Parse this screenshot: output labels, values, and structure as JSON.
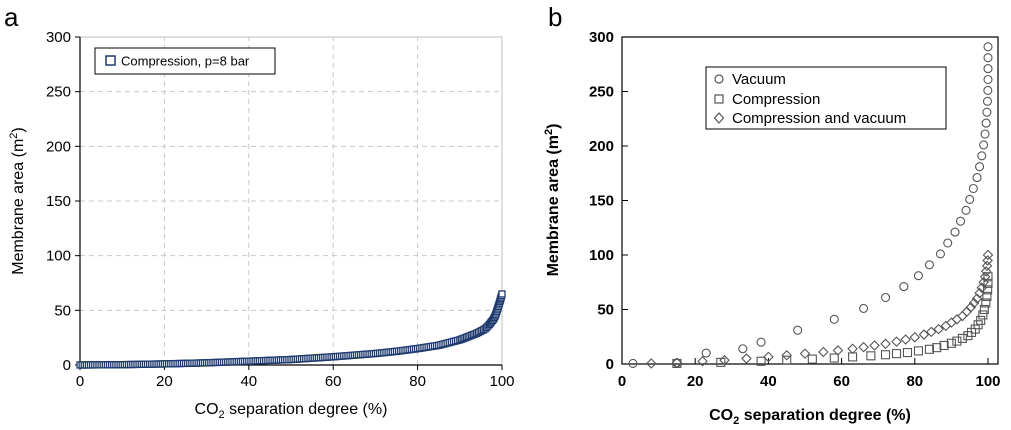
{
  "chart_data": [
    {
      "panel_label": "a",
      "type": "scatter",
      "xlabel": "CO2 separation degree (%)",
      "ylabel": "Membrane area (m2)",
      "xlim": [
        0,
        100
      ],
      "ylim": [
        0,
        300
      ],
      "xticks": [
        "0",
        "20",
        "40",
        "60",
        "80",
        "100"
      ],
      "yticks": [
        "0",
        "50",
        "100",
        "150",
        "200",
        "250",
        "300"
      ],
      "grid": true,
      "legend_position": "top-left",
      "marker": "square",
      "color": "#1f3a6e",
      "series": [
        {
          "name": "Compression, p=8 bar",
          "points": [
            [
              0,
              0.0
            ],
            [
              10,
              0.3
            ],
            [
              20,
              1.0
            ],
            [
              30,
              2.0
            ],
            [
              40,
              3.5
            ],
            [
              50,
              5.0
            ],
            [
              60,
              7.5
            ],
            [
              65,
              9.0
            ],
            [
              70,
              10.5
            ],
            [
              75,
              12.5
            ],
            [
              80,
              15.0
            ],
            [
              85,
              18.0
            ],
            [
              88,
              21.0
            ],
            [
              90,
              23.0
            ],
            [
              92,
              26.0
            ],
            [
              94,
              29.0
            ],
            [
              96,
              33.0
            ],
            [
              97,
              37.0
            ],
            [
              98,
              42.0
            ],
            [
              98.5,
              46.0
            ],
            [
              99,
              52.0
            ],
            [
              99.5,
              58.0
            ],
            [
              99.8,
              62.0
            ],
            [
              100,
              65.0
            ]
          ]
        }
      ]
    },
    {
      "panel_label": "b",
      "type": "scatter",
      "xlabel": "CO2 separation degree (%)",
      "ylabel": "Membrane area (m2)",
      "xlim": [
        0,
        100
      ],
      "ylim": [
        0,
        300
      ],
      "xticks": [
        "0",
        "20",
        "40",
        "60",
        "80",
        "100"
      ],
      "yticks": [
        "0",
        "50",
        "100",
        "150",
        "200",
        "250",
        "300"
      ],
      "grid": false,
      "legend_position": "top-center",
      "series": [
        {
          "name": "Vacuum",
          "marker": "circle",
          "points": [
            [
              3,
              0.5
            ],
            [
              15,
              1
            ],
            [
              23,
              10
            ],
            [
              33,
              14
            ],
            [
              38,
              20
            ],
            [
              48,
              31
            ],
            [
              58,
              41
            ],
            [
              66,
              51
            ],
            [
              72,
              61
            ],
            [
              77,
              71
            ],
            [
              81,
              81
            ],
            [
              84,
              91
            ],
            [
              87,
              101
            ],
            [
              89,
              111
            ],
            [
              91,
              121
            ],
            [
              92.5,
              131
            ],
            [
              94,
              141
            ],
            [
              95,
              151
            ],
            [
              96,
              161
            ],
            [
              97,
              171
            ],
            [
              97.7,
              181
            ],
            [
              98.3,
              191
            ],
            [
              98.8,
              201
            ],
            [
              99.2,
              211
            ],
            [
              99.5,
              221
            ],
            [
              99.7,
              231
            ],
            [
              99.85,
              241
            ],
            [
              99.95,
              251
            ],
            [
              100,
              261
            ],
            [
              100,
              271
            ],
            [
              100,
              281
            ],
            [
              100,
              291
            ]
          ]
        },
        {
          "name": "Compression",
          "marker": "square",
          "points": [
            [
              15,
              0.5
            ],
            [
              27,
              1.5
            ],
            [
              38,
              2.5
            ],
            [
              45,
              3.5
            ],
            [
              52,
              4.5
            ],
            [
              58,
              5.5
            ],
            [
              63,
              6.5
            ],
            [
              68,
              7.5
            ],
            [
              72,
              8.5
            ],
            [
              75,
              9.5
            ],
            [
              78,
              10.5
            ],
            [
              81,
              12
            ],
            [
              84,
              13.5
            ],
            [
              86,
              15
            ],
            [
              88,
              17
            ],
            [
              90,
              19
            ],
            [
              91.5,
              21
            ],
            [
              93,
              23.5
            ],
            [
              94.5,
              26
            ],
            [
              95.5,
              29
            ],
            [
              96.5,
              32
            ],
            [
              97.3,
              36
            ],
            [
              98,
              40
            ],
            [
              98.6,
              45
            ],
            [
              99,
              50
            ],
            [
              99.4,
              56
            ],
            [
              99.7,
              62
            ],
            [
              99.9,
              68
            ],
            [
              100,
              74
            ],
            [
              100,
              80
            ]
          ]
        },
        {
          "name": "Compression and vacuum",
          "marker": "diamond",
          "points": [
            [
              8,
              0.5
            ],
            [
              15,
              1
            ],
            [
              22,
              2.5
            ],
            [
              28,
              3.5
            ],
            [
              34,
              5
            ],
            [
              40,
              6.5
            ],
            [
              45,
              8
            ],
            [
              50,
              9.5
            ],
            [
              55,
              11
            ],
            [
              59,
              12.5
            ],
            [
              63,
              14
            ],
            [
              66,
              15.5
            ],
            [
              69,
              17
            ],
            [
              72,
              18.5
            ],
            [
              75,
              20.5
            ],
            [
              77.5,
              22.5
            ],
            [
              80,
              24.5
            ],
            [
              82.5,
              27
            ],
            [
              84.5,
              29.5
            ],
            [
              86.5,
              32
            ],
            [
              88.5,
              35
            ],
            [
              90,
              38
            ],
            [
              91.5,
              41
            ],
            [
              93,
              44
            ],
            [
              94.2,
              48
            ],
            [
              95.3,
              52
            ],
            [
              96.2,
              56
            ],
            [
              97,
              60
            ],
            [
              97.7,
              65
            ],
            [
              98.3,
              70
            ],
            [
              98.8,
              75
            ],
            [
              99.2,
              80
            ],
            [
              99.5,
              85
            ],
            [
              99.75,
              90
            ],
            [
              99.9,
              95
            ],
            [
              100,
              100
            ]
          ]
        }
      ]
    }
  ]
}
